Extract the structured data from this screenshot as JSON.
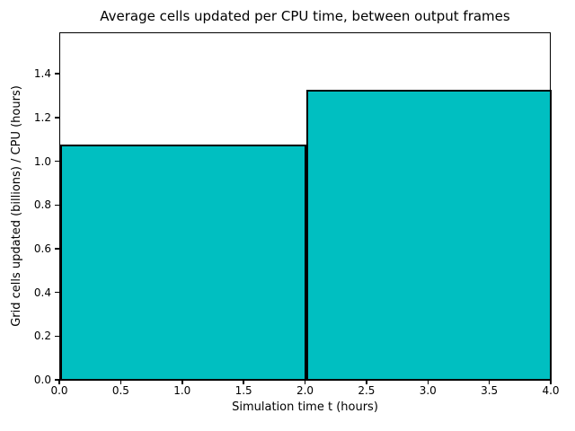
{
  "chart_data": {
    "type": "bar",
    "title": "Average cells updated per CPU time, between output frames",
    "xlabel": "Simulation time t (hours)",
    "ylabel": "Grid cells updated (billions) / CPU (hours)",
    "bars": [
      {
        "x_start": 0.0,
        "x_end": 2.0,
        "value": 1.08
      },
      {
        "x_start": 2.0,
        "x_end": 4.0,
        "value": 1.33
      }
    ],
    "xlim": [
      0.0,
      4.0
    ],
    "ylim": [
      0.0,
      1.59
    ],
    "xticks": [
      {
        "v": 0.0,
        "label": "0.0"
      },
      {
        "v": 0.5,
        "label": "0.5"
      },
      {
        "v": 1.0,
        "label": "1.0"
      },
      {
        "v": 1.5,
        "label": "1.5"
      },
      {
        "v": 2.0,
        "label": "2.0"
      },
      {
        "v": 2.5,
        "label": "2.5"
      },
      {
        "v": 3.0,
        "label": "3.0"
      },
      {
        "v": 3.5,
        "label": "3.5"
      },
      {
        "v": 4.0,
        "label": "4.0"
      }
    ],
    "yticks": [
      {
        "v": 0.0,
        "label": "0.0"
      },
      {
        "v": 0.2,
        "label": "0.2"
      },
      {
        "v": 0.4,
        "label": "0.4"
      },
      {
        "v": 0.6,
        "label": "0.6"
      },
      {
        "v": 0.8,
        "label": "0.8"
      },
      {
        "v": 1.0,
        "label": "1.0"
      },
      {
        "v": 1.2,
        "label": "1.2"
      },
      {
        "v": 1.4,
        "label": "1.4"
      }
    ],
    "grid": false,
    "legend": "none",
    "bar_color": "#00bfc1",
    "edge_color": "#000000",
    "background_color": "#ffffff"
  }
}
